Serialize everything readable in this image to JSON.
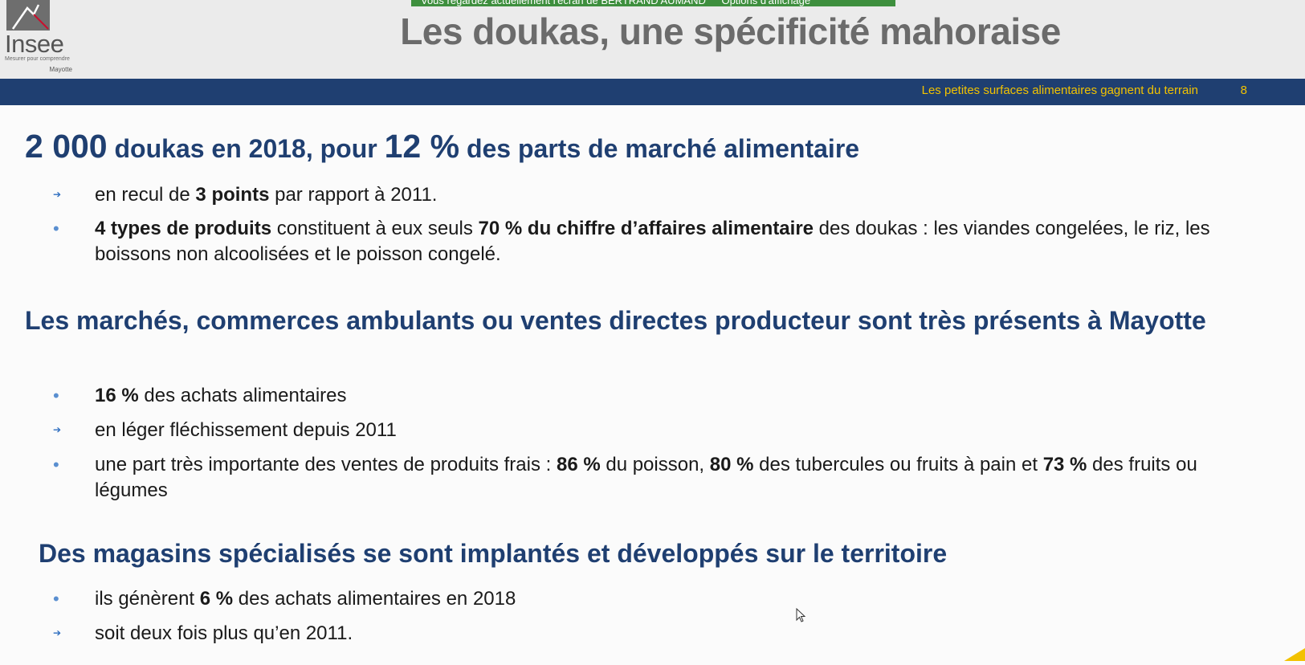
{
  "header": {
    "logo": {
      "name": "Insee",
      "tagline": "Mesurer pour comprendre",
      "region": "Mayotte"
    },
    "notification": {
      "text": "Vous regardez actuellement l'écran de BERTRAND AUMAND",
      "option": "Options d'affichage"
    },
    "title": "Les doukas, une spécificité mahoraise"
  },
  "band": {
    "subtitle": "Les petites surfaces alimentaires gagnent du terrain",
    "page_number": "8"
  },
  "section1": {
    "heading": {
      "big1": "2 000",
      "mid1": " doukas en 2018, pour ",
      "big2": "12 %",
      "mid2": " des parts de marché alimentaire"
    },
    "bullet1": {
      "marker": "arrow",
      "pre": "en recul de ",
      "bold": "3 points",
      "post": " par rapport à 2011."
    },
    "bullet2": {
      "marker": "dot",
      "bold1": "4 types de produits",
      "text1": " constituent à eux seuls ",
      "bold2": "70 % du chiffre d’affaires alimentaire",
      "text2": " des doukas : les viandes congelées, le riz, les boissons non alcoolisées et le poisson congelé."
    }
  },
  "section2": {
    "heading": "Les marchés, commerces ambulants ou ventes directes producteur sont très présents à Mayotte",
    "bullet1": {
      "marker": "dot",
      "bold": "16 %",
      "post": " des achats alimentaires"
    },
    "bullet2": {
      "marker": "arrow",
      "text": "en léger fléchissement depuis 2011"
    },
    "bullet3": {
      "marker": "dot",
      "pre": "une part très importante des ventes de produits frais : ",
      "bold1": "86 %",
      "mid1": " du poisson, ",
      "bold2": "80 %",
      "mid2": " des tubercules ou fruits à pain et ",
      "bold3": "73 %",
      "post": " des fruits ou légumes"
    }
  },
  "section3": {
    "heading": "Des magasins spécialisés se sont implantés et développés sur le territoire",
    "bullet1": {
      "marker": "dot",
      "pre": "ils génèrent ",
      "bold": "6 %",
      "post": " des achats alimentaires en 2018"
    },
    "bullet2": {
      "marker": "arrow",
      "text": "soit deux fois plus qu’en 2011."
    }
  },
  "colors": {
    "band": "#1f3f71",
    "band_text": "#f2c200",
    "heading": "#1f3f71",
    "title": "#6b6b6b",
    "notification": "#3e8f3e"
  }
}
